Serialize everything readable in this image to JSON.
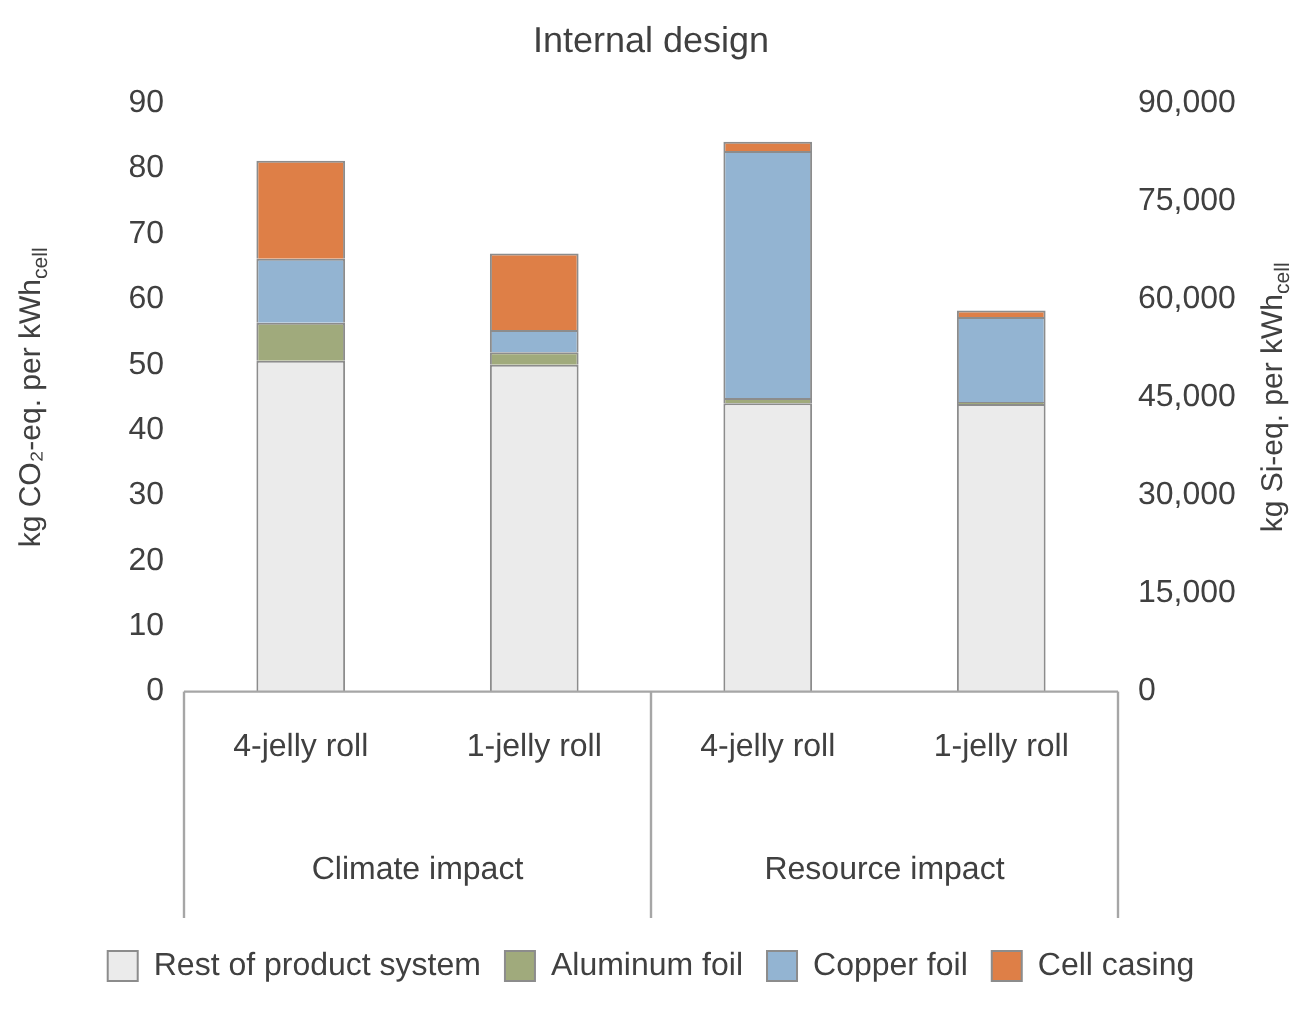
{
  "chart_data": {
    "type": "bar",
    "title": "Internal design",
    "ylabel": "kg CO₂-eq. per kWh$_{cell}$",
    "y2label": "kg Si-eq. per kWh$_{cell}$",
    "categories": [
      "4-jelly roll",
      "1-jelly roll",
      "4-jelly roll",
      "1-jelly roll"
    ],
    "annotations": [
      "Climate impact",
      "Resource impact"
    ],
    "stacked": true,
    "grid": false,
    "legend": "bottom",
    "ylim": [
      0,
      90
    ],
    "yticks": [
      0,
      10,
      20,
      30,
      40,
      50,
      60,
      70,
      80,
      90
    ],
    "y2lim": [
      0,
      90000
    ],
    "y2ticks": [
      {
        "value": 0,
        "label": "0"
      },
      {
        "value": 15000,
        "label": "15,000"
      },
      {
        "value": 30000,
        "label": "30,000"
      },
      {
        "value": 45000,
        "label": "45,000"
      },
      {
        "value": 60000,
        "label": "60,000"
      },
      {
        "value": 75000,
        "label": "75,000"
      },
      {
        "value": 90000,
        "label": "90,000"
      }
    ],
    "series": [
      {
        "name": "Rest of product system",
        "color": "#ebebeb",
        "values": [
          50.6,
          50.0,
          null,
          null
        ]
      },
      {
        "name": "Aluminum foil",
        "color": "#a0aa7c",
        "values": [
          5.8,
          1.9,
          null,
          null
        ]
      },
      {
        "name": "Copper foil",
        "color": "#93b4d2",
        "values": [
          9.8,
          3.4,
          null,
          null
        ]
      },
      {
        "name": "Cell casing",
        "color": "#de7f47",
        "values": [
          15.0,
          11.7,
          null,
          null
        ]
      },
      {
        "color": "#ebebeb",
        "axis": "y2",
        "values": [
          null,
          null,
          44100,
          44000
        ]
      },
      {
        "color": "#a0aa7c",
        "axis": "y2",
        "values": [
          null,
          null,
          800,
          300
        ]
      },
      {
        "color": "#93b4d2",
        "axis": "y2",
        "values": [
          null,
          null,
          37800,
          13000
        ]
      },
      {
        "color": "#de7f47",
        "axis": "y2",
        "values": [
          null,
          null,
          1400,
          1000
        ]
      }
    ]
  }
}
